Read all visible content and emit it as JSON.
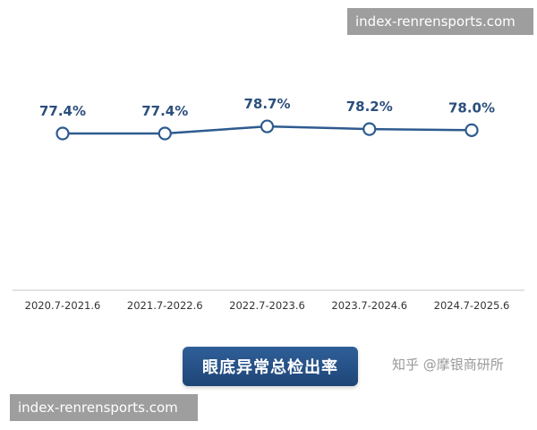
{
  "chart_data": {
    "type": "line",
    "categories": [
      "2020.7-2021.6",
      "2021.7-2022.6",
      "2022.7-2023.6",
      "2023.7-2024.6",
      "2024.7-2025.6"
    ],
    "values": [
      77.4,
      77.4,
      78.7,
      78.2,
      78.0
    ],
    "value_labels": [
      "77.4%",
      "77.4%",
      "78.7%",
      "78.2%",
      "78.0%"
    ],
    "unit": "%",
    "title": "眼底异常总检出率",
    "xlabel": "",
    "ylabel": "",
    "grid": false,
    "legend": "none"
  },
  "watermark": "知乎 @摩银商研所",
  "overlay": {
    "top_text": "index-renrensports.com",
    "bottom_text": "index-renrensports.com"
  },
  "colors": {
    "line": "#2e5b8f",
    "marker_fill": "#ffffff",
    "value_label": "#2b4f7c",
    "tick_label": "#333333",
    "axis": "#d9d9d9",
    "button_bg": "#244c80",
    "overlay_bg": "#7a7a7a"
  }
}
